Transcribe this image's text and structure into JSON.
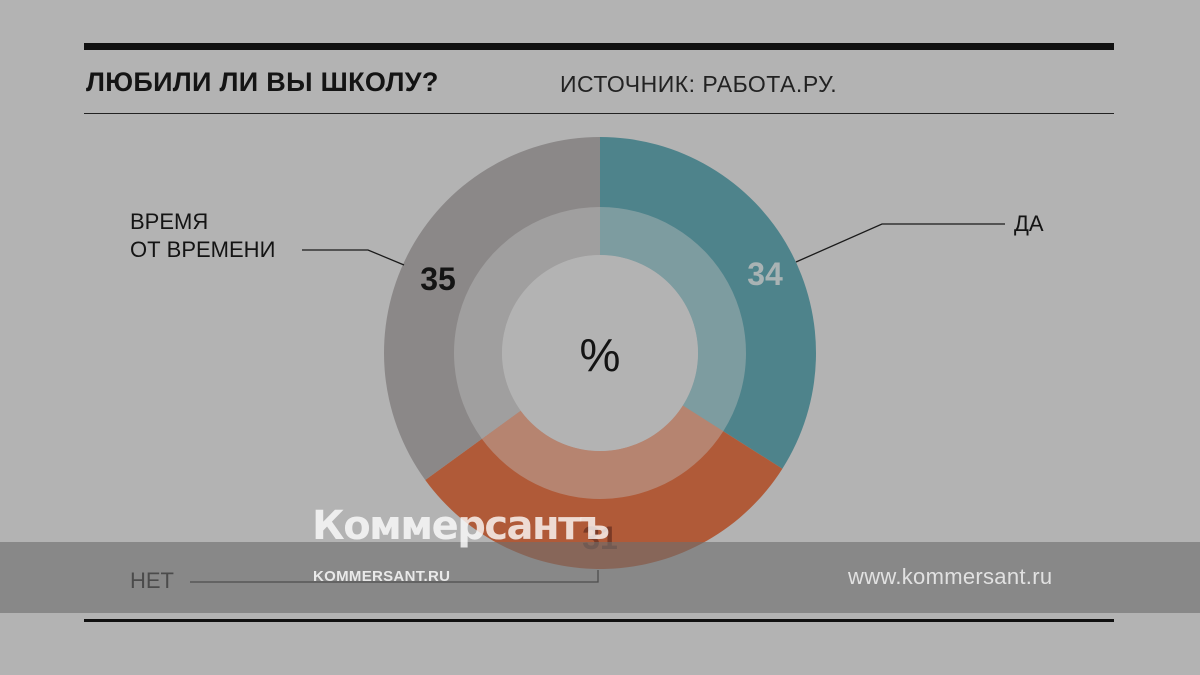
{
  "header": {
    "title": "ЛЮБИЛИ ЛИ ВЫ ШКОЛУ?",
    "source": "ИСТОЧНИК: РАБОТА.РУ."
  },
  "chart_data": {
    "type": "pie",
    "center_label": "%",
    "series": [
      {
        "label": "ДА",
        "value": 34,
        "color": "#4e838b"
      },
      {
        "label": "НЕТ",
        "value": 31,
        "color": "#b05a38"
      },
      {
        "label": "ВРЕМЯ ОТ ВРЕМЕНИ",
        "value": 35,
        "color": "#8b8888"
      }
    ]
  },
  "watermark": {
    "logo": "Коммерсантъ",
    "domain": "KOMMERSANT.RU",
    "site": "www.kommersant.ru"
  }
}
